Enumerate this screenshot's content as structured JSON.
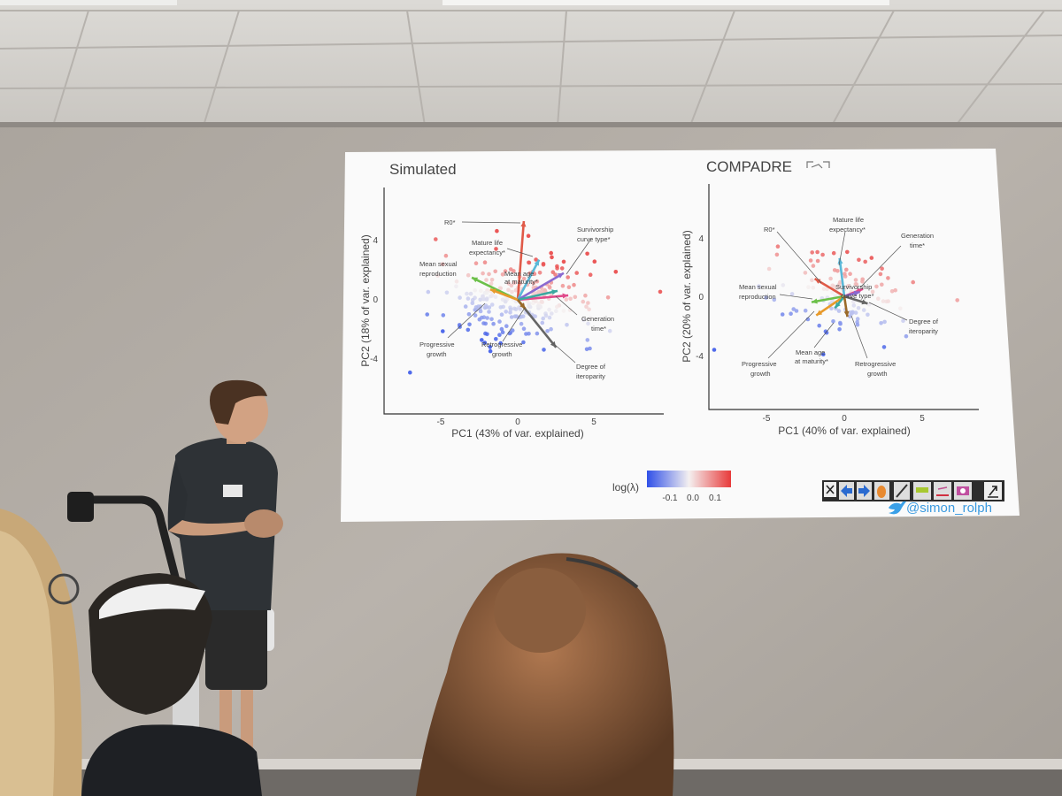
{
  "slide": {
    "handle": "@simon_rolph",
    "legend": {
      "title": "log(λ)",
      "ticks": [
        "-0.1",
        "0.0",
        "0.1"
      ],
      "colors": [
        "#3050e8",
        "#f4f0f0",
        "#e83a3a"
      ]
    },
    "toolbar_icons": [
      "close-icon",
      "back-arrow-icon",
      "forward-arrow-icon",
      "hand-icon",
      "pen-icon",
      "highlighter-icon",
      "eraser-icon",
      "camera-icon",
      "exit-icon"
    ]
  },
  "chart_data": [
    {
      "type": "scatter",
      "title": "Simulated",
      "xlabel": "PC1 (43% of var. explained)",
      "ylabel": "PC2 (18% of var. explained)",
      "xticks": [
        "-5",
        "0",
        "5"
      ],
      "yticks": [
        "4",
        "0",
        "-4"
      ],
      "xlim": [
        -8,
        8
      ],
      "ylim": [
        -8,
        7.5
      ],
      "loadings": [
        {
          "label": "R0*",
          "x": 0.4,
          "y": 5.3,
          "color": "#e05a48"
        },
        {
          "label": "Mature life expectancy*",
          "x": 1.4,
          "y": 2.7,
          "color": "#5ab8d8"
        },
        {
          "label": "Survivorship curve type*",
          "x": 3.0,
          "y": 1.8,
          "color": "#8a6ad0"
        },
        {
          "label": "Mean sexual reproduction",
          "x": -3.0,
          "y": 1.5,
          "color": "#6cc04a"
        },
        {
          "label": "Mean age at maturity*",
          "x": 3.3,
          "y": 0.3,
          "color": "#e04a8a"
        },
        {
          "label": "Generation time*",
          "x": 2.6,
          "y": 0.6,
          "color": "#3aa8a0"
        },
        {
          "label": "Degree of iteroparity",
          "x": 2.5,
          "y": -3.2,
          "color": "#666666"
        },
        {
          "label": "Progressive growth",
          "x": -1.8,
          "y": 0.7,
          "color": "#e89a2a"
        },
        {
          "label": "Retrogressive growth",
          "x": 0.5,
          "y": -0.6,
          "color": "#9a6a2a"
        }
      ]
    },
    {
      "type": "scatter",
      "title": "COMPADRE",
      "xlabel": "PC1 (40% of var. explained)",
      "ylabel": "PC2 (20% of var. explained)",
      "xticks": [
        "-5",
        "0",
        "5"
      ],
      "yticks": [
        "4",
        "0",
        "-4"
      ],
      "xlim": [
        -9,
        9
      ],
      "ylim": [
        -7.7,
        7.7
      ],
      "loadings": [
        {
          "label": "R0*",
          "x": -1.9,
          "y": 1.2,
          "color": "#e05a48"
        },
        {
          "label": "Mature life expectancy*",
          "x": -0.3,
          "y": 2.6,
          "color": "#5ab8d8"
        },
        {
          "label": "Generation time*",
          "x": 1.2,
          "y": 0.5,
          "color": "#e04a8a"
        },
        {
          "label": "Mean sexual reproduction",
          "x": -2.1,
          "y": -0.4,
          "color": "#6cc04a"
        },
        {
          "label": "Survivorship curve type*",
          "x": 1.0,
          "y": 0.3,
          "color": "#8a6ad0"
        },
        {
          "label": "Degree of iteroparity",
          "x": 1.5,
          "y": -0.5,
          "color": "#666666"
        },
        {
          "label": "Progressive growth",
          "x": -1.8,
          "y": -1.3,
          "color": "#e89a2a"
        },
        {
          "label": "Mean age at maturity*",
          "x": -0.6,
          "y": -0.8,
          "color": "#3aa8a0"
        },
        {
          "label": "Retrogressive growth",
          "x": 0.2,
          "y": -1.4,
          "color": "#9a6a2a"
        }
      ]
    }
  ]
}
